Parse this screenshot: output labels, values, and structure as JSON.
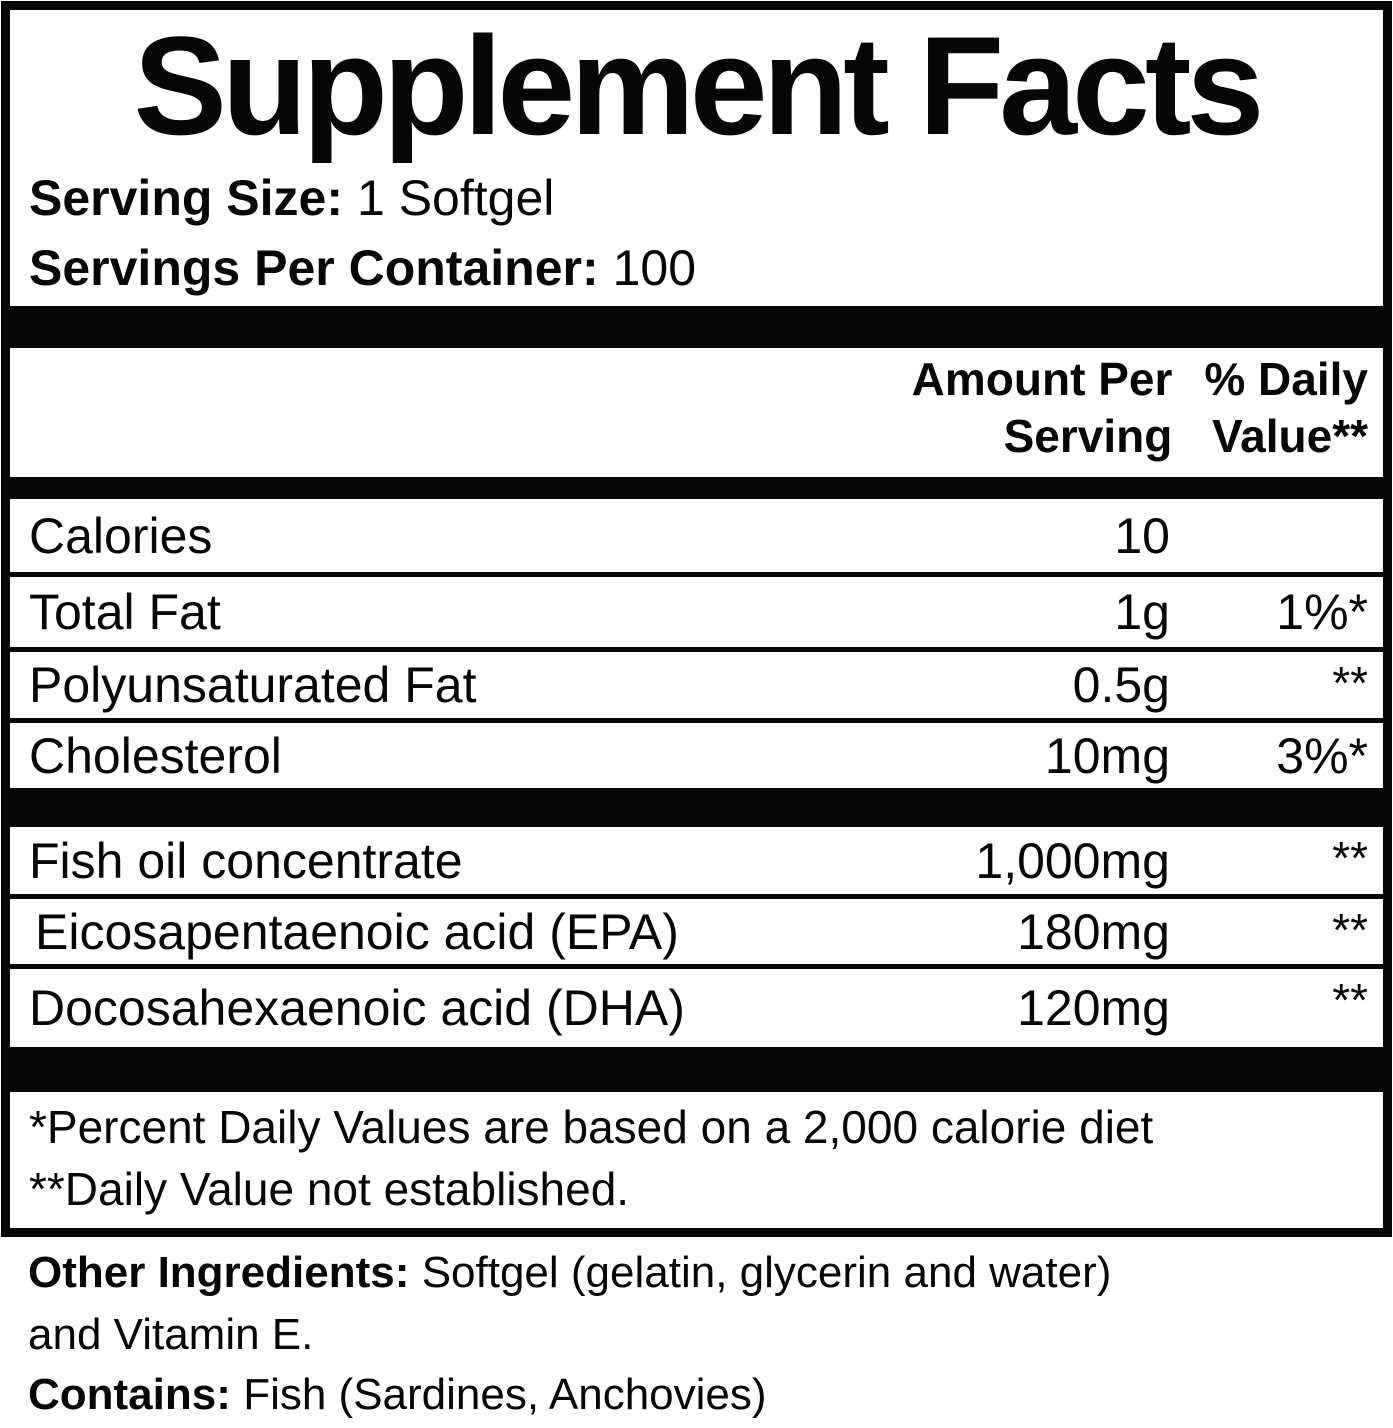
{
  "label": {
    "title": "Supplement Facts",
    "serving_size": {
      "label": "Serving Size:",
      "value": "1 Softgel"
    },
    "servings_per_container": {
      "label": "Servings Per Container:",
      "value": "100"
    },
    "columns": {
      "amount": [
        "Amount Per",
        "Serving"
      ],
      "daily_value": [
        "% Daily",
        "Value**"
      ]
    },
    "rows": [
      {
        "name": "Calories",
        "amount": "10",
        "dv": ""
      },
      {
        "name": "Total Fat",
        "amount": "1g",
        "dv": "1%*"
      },
      {
        "name": "Polyunsaturated Fat",
        "amount": "0.5g",
        "dv": "**"
      },
      {
        "name": "Cholesterol",
        "amount": "10mg",
        "dv": "3%*"
      },
      {
        "name": "Fish oil concentrate",
        "amount": "1,000mg",
        "dv": "**"
      },
      {
        "name": "Eicosapentaenoic acid (EPA)",
        "amount": "180mg",
        "dv": "**"
      },
      {
        "name": "Docosahexaenoic acid (DHA)",
        "amount": "120mg",
        "dv": "**"
      }
    ],
    "footnotes": [
      "*Percent Daily Values are based on a 2,000 calorie diet",
      "**Daily Value not established."
    ]
  },
  "below_label": {
    "other_ingredients": {
      "label": "Other Ingredients:",
      "value": "Softgel (gelatin, glycerin and water)"
    },
    "other_ingredients_cont": "and Vitamin E.",
    "contains": {
      "label": "Contains:",
      "value": "Fish (Sardines, Anchovies)"
    }
  },
  "colors": {
    "ink": "#060606",
    "paper": "#ffffff"
  }
}
